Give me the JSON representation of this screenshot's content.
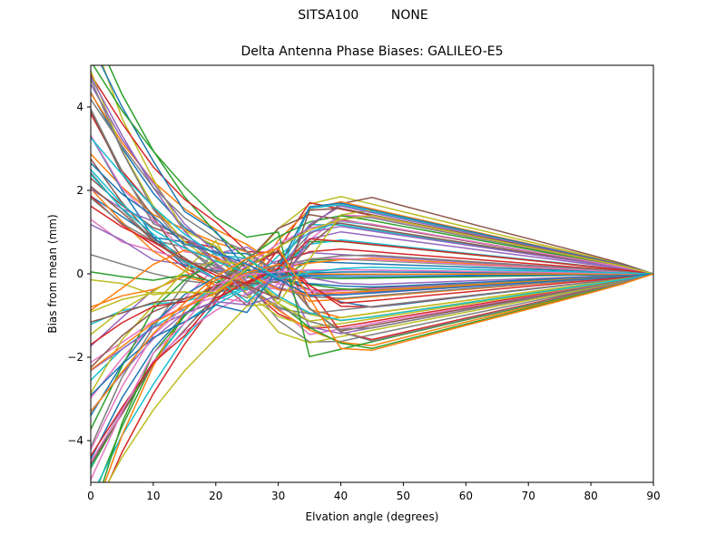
{
  "chart_data": {
    "type": "line",
    "suptitle": "SITSA100        NONE",
    "title": "Delta Antenna Phase Biases: GALILEO-E5",
    "xlabel": "Elvation angle (degrees)",
    "ylabel": "Bias from mean (mm)",
    "xlim": [
      0,
      90
    ],
    "ylim": [
      -5,
      5
    ],
    "xticks": [
      0,
      10,
      20,
      30,
      40,
      50,
      60,
      70,
      80,
      90
    ],
    "yticks": [
      -4,
      -2,
      0,
      2,
      4
    ],
    "x": [
      0,
      5,
      10,
      15,
      20,
      25,
      30,
      35,
      40,
      45,
      50,
      55,
      60,
      65,
      70,
      75,
      80,
      85,
      90
    ],
    "palette": [
      "#1f77b4",
      "#ff7f0e",
      "#2ca02c",
      "#d62728",
      "#9467bd",
      "#8c564b",
      "#e377c2",
      "#7f7f7f",
      "#bcbd22",
      "#17becf"
    ],
    "series_generator": {
      "count": 72,
      "elevation_zero_y_range": [
        -6.0,
        6.0
      ],
      "mid_elevation_y_range": [
        -2.05,
        2.1
      ],
      "converges_to": 0
    }
  }
}
